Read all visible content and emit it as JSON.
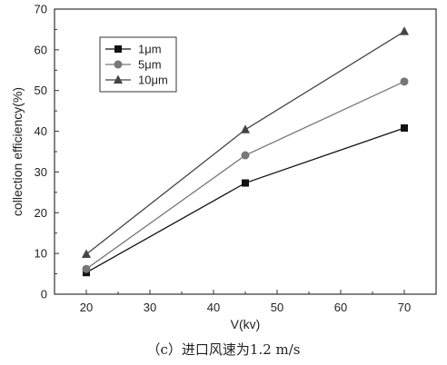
{
  "chart_data": {
    "type": "line",
    "title": "",
    "xlabel": "V(kv)",
    "ylabel": "collection efficiency(%)",
    "xlim": [
      15,
      75
    ],
    "ylim": [
      0,
      70
    ],
    "xticks": [
      20,
      30,
      40,
      50,
      60,
      70
    ],
    "yticks": [
      0,
      10,
      20,
      30,
      40,
      50,
      60,
      70
    ],
    "x": [
      20,
      45,
      70
    ],
    "grid": false,
    "legend_position": "top-left",
    "series": [
      {
        "name": "1μm",
        "values": [
          5.3,
          27.3,
          40.8
        ],
        "marker": "square",
        "color": "#111111"
      },
      {
        "name": "5μm",
        "values": [
          6.2,
          34.1,
          52.2
        ],
        "marker": "circle",
        "color": "#777777"
      },
      {
        "name": "10μm",
        "values": [
          9.8,
          40.4,
          64.5
        ],
        "marker": "triangle",
        "color": "#444444"
      }
    ]
  },
  "caption": "（c）进口风速为1.2 m/s"
}
